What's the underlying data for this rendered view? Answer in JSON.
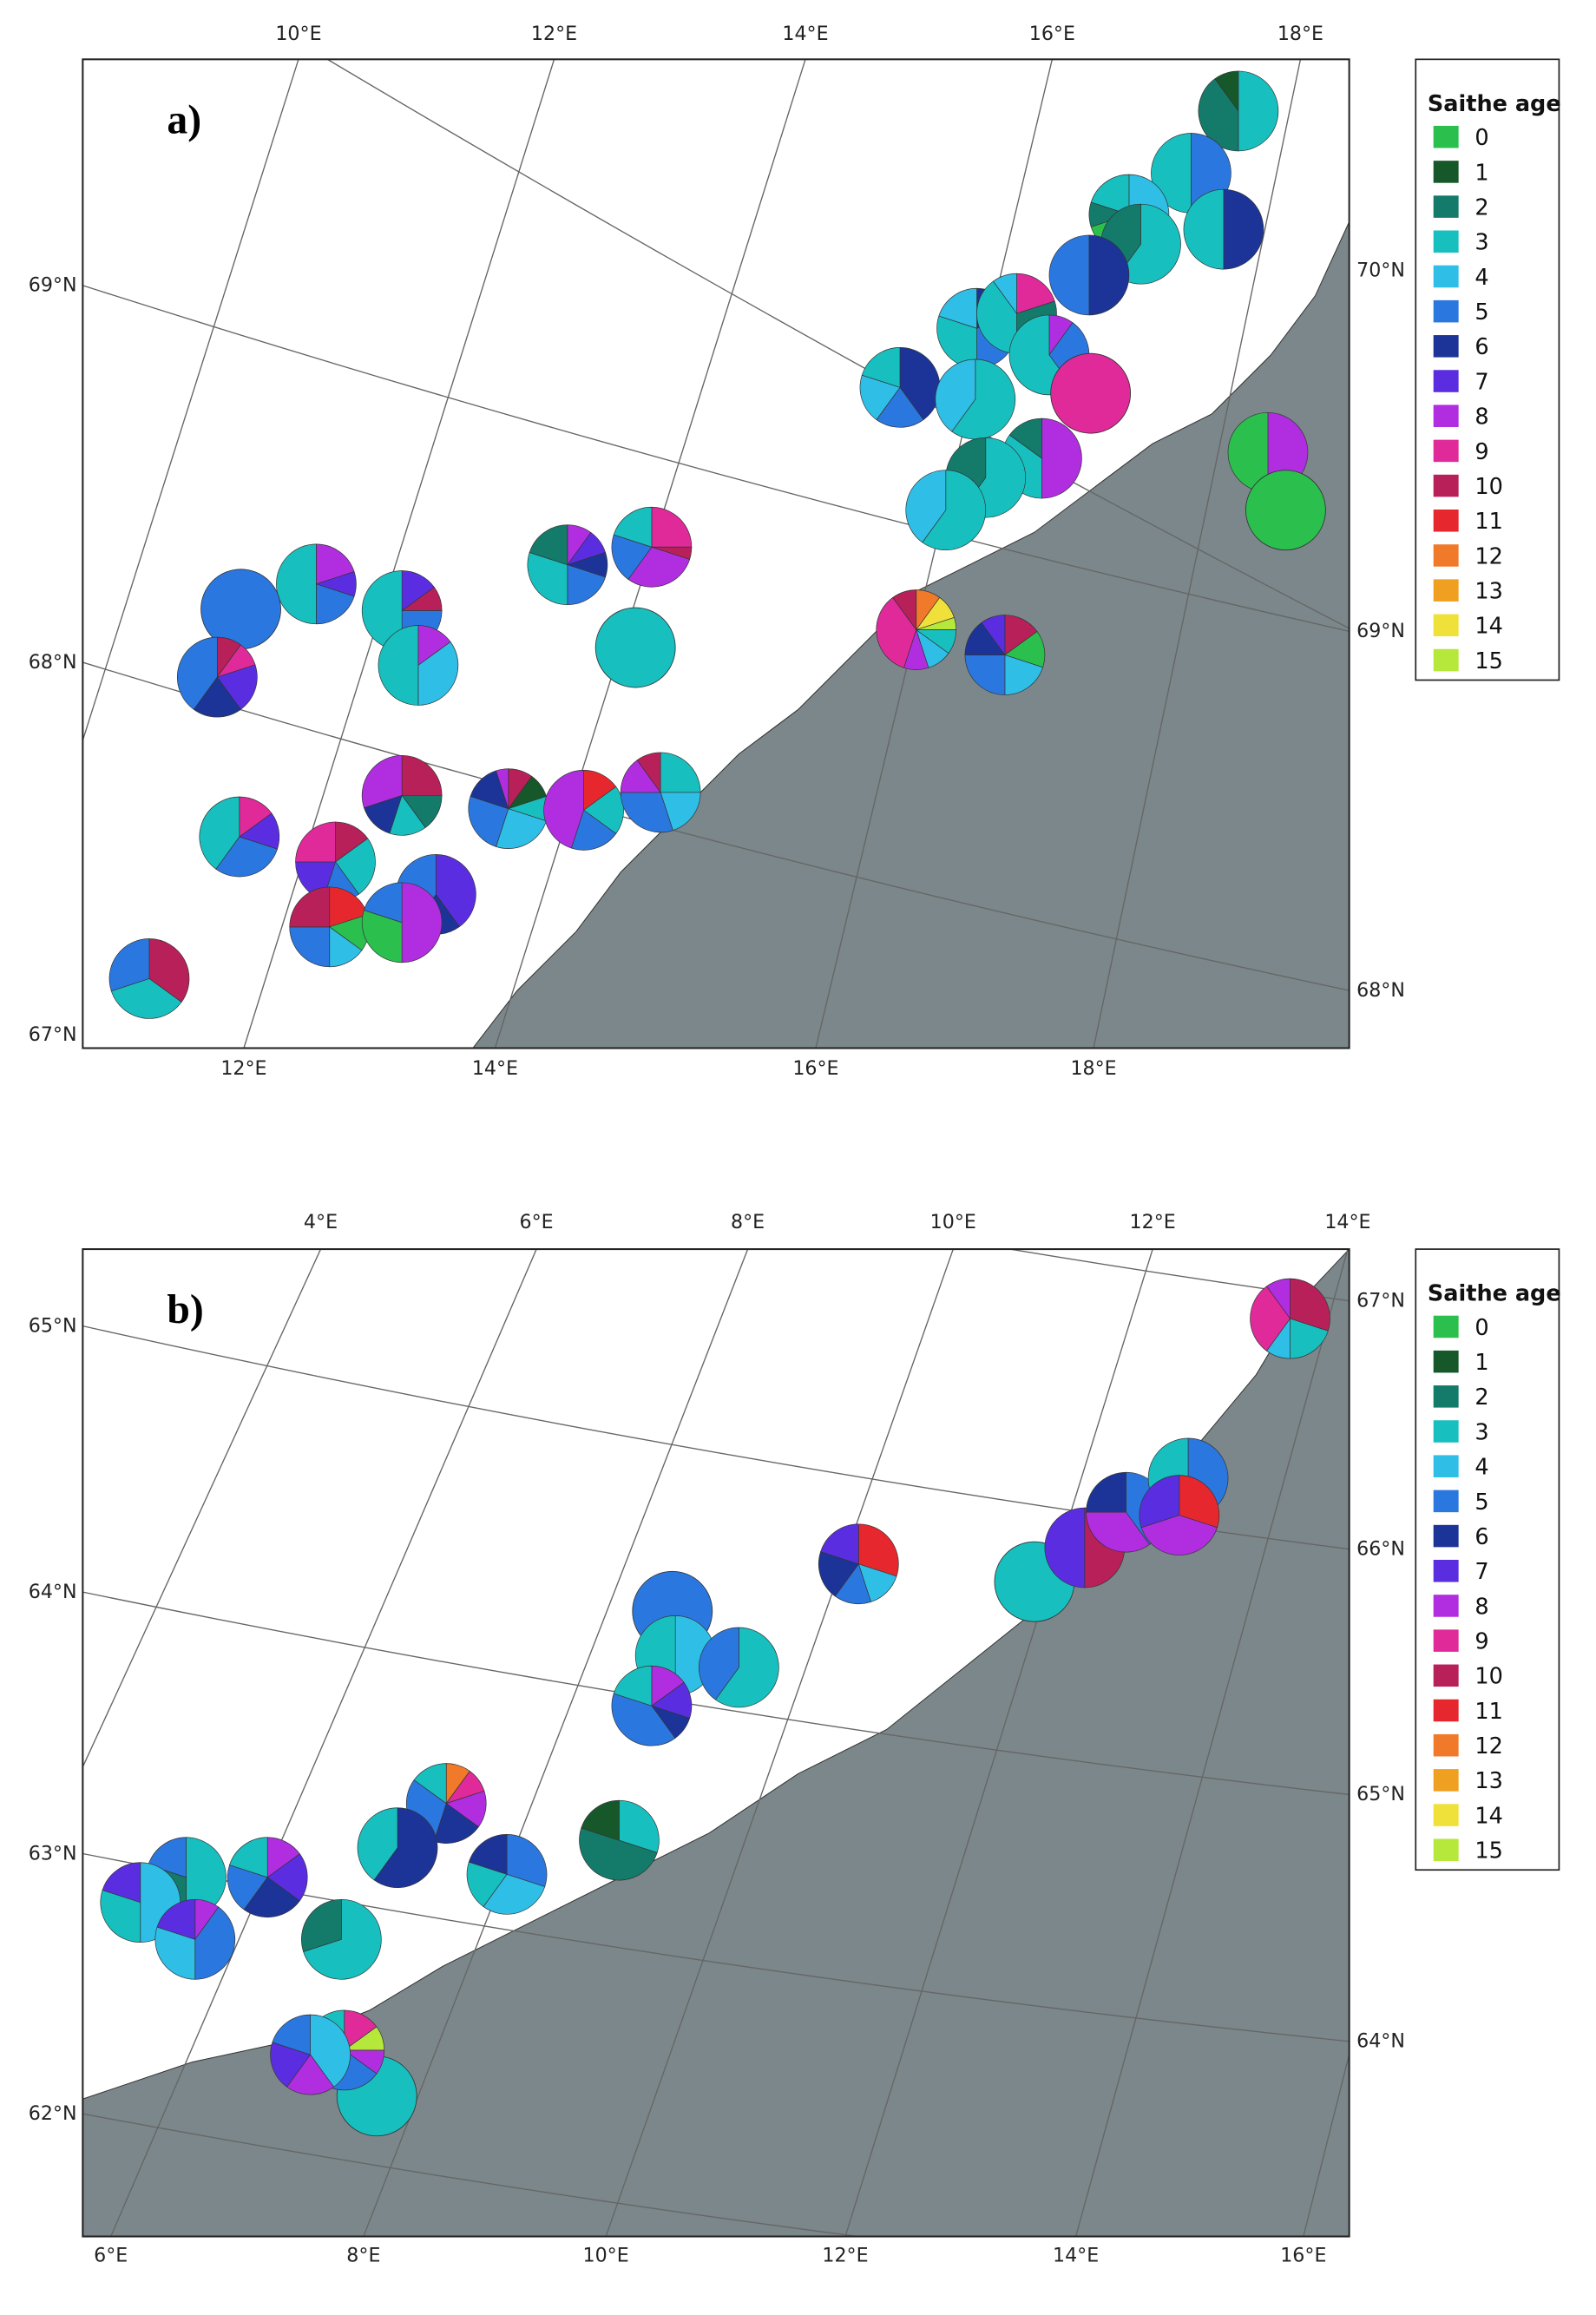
{
  "legend": {
    "title": "Saithe age",
    "ages": [
      "0",
      "1",
      "2",
      "3",
      "4",
      "5",
      "6",
      "7",
      "8",
      "9",
      "10",
      "11",
      "12",
      "13",
      "14",
      "15"
    ],
    "colors": [
      "#2bbf4e",
      "#17582a",
      "#147a6a",
      "#18bfbf",
      "#2ebee6",
      "#2b77e0",
      "#1c3497",
      "#5a2ee0",
      "#b02ee0",
      "#e02a9a",
      "#b8205a",
      "#e6282e",
      "#f07a2a",
      "#f0a020",
      "#efe03a",
      "#b5e83a"
    ]
  },
  "chart_data": [
    {
      "type": "map-pie",
      "panel_label": "a)",
      "top_ticks": [
        "10°E",
        "12°E",
        "14°E",
        "16°E",
        "18°E"
      ],
      "bottom_ticks": [
        "12°E",
        "14°E",
        "16°E",
        "18°E"
      ],
      "left_ticks": [
        "69°N",
        "68°N",
        "67°N"
      ],
      "right_ticks": [
        "70°N",
        "69°N",
        "68°N"
      ],
      "pies": [
        [
          [
            3,
            0.5
          ],
          [
            2,
            0.4
          ],
          [
            1,
            0.1
          ]
        ],
        [
          [
            5,
            0.5
          ],
          [
            3,
            0.5
          ]
        ],
        [
          [
            4,
            0.6
          ],
          [
            0,
            0.1
          ],
          [
            2,
            0.1
          ],
          [
            3,
            0.2
          ]
        ],
        [
          [
            6,
            0.5
          ],
          [
            3,
            0.5
          ]
        ],
        [
          [
            3,
            0.6
          ],
          [
            2,
            0.4
          ]
        ],
        [
          [
            6,
            0.5
          ],
          [
            5,
            0.5
          ]
        ],
        [
          [
            6,
            0.1
          ],
          [
            7,
            0.1
          ],
          [
            5,
            0.3
          ],
          [
            3,
            0.3
          ],
          [
            4,
            0.2
          ]
        ],
        [
          [
            9,
            0.2
          ],
          [
            2,
            0.3
          ],
          [
            3,
            0.4
          ],
          [
            4,
            0.1
          ]
        ],
        [
          [
            8,
            0.1
          ],
          [
            5,
            0.3
          ],
          [
            3,
            0.6
          ]
        ],
        [
          [
            9,
            1.0
          ]
        ],
        [
          [
            6,
            0.4
          ],
          [
            5,
            0.2
          ],
          [
            4,
            0.2
          ],
          [
            3,
            0.2
          ]
        ],
        [
          [
            3,
            0.6
          ],
          [
            4,
            0.4
          ]
        ],
        [
          [
            8,
            0.5
          ],
          [
            3,
            0.35
          ],
          [
            2,
            0.15
          ]
        ],
        [
          [
            8,
            0.5
          ],
          [
            0,
            0.5
          ]
        ],
        [
          [
            0,
            1.0
          ]
        ],
        [
          [
            3,
            0.6
          ],
          [
            2,
            0.4
          ]
        ],
        [
          [
            3,
            0.6
          ],
          [
            4,
            0.4
          ]
        ],
        [
          [
            8,
            0.2
          ],
          [
            7,
            0.1
          ],
          [
            5,
            0.2
          ],
          [
            3,
            0.5
          ]
        ],
        [
          [
            5,
            1.0
          ]
        ],
        [
          [
            7,
            0.15
          ],
          [
            10,
            0.1
          ],
          [
            5,
            0.25
          ],
          [
            3,
            0.5
          ]
        ],
        [
          [
            8,
            0.15
          ],
          [
            4,
            0.35
          ],
          [
            3,
            0.5
          ]
        ],
        [
          [
            8,
            0.1
          ],
          [
            7,
            0.1
          ],
          [
            6,
            0.1
          ],
          [
            5,
            0.2
          ],
          [
            3,
            0.3
          ],
          [
            2,
            0.2
          ]
        ],
        [
          [
            9,
            0.25
          ],
          [
            10,
            0.05
          ],
          [
            8,
            0.3
          ],
          [
            5,
            0.2
          ],
          [
            3,
            0.2
          ]
        ],
        [
          [
            3,
            1.0
          ]
        ],
        [
          [
            10,
            0.1
          ],
          [
            9,
            0.1
          ],
          [
            7,
            0.2
          ],
          [
            6,
            0.2
          ],
          [
            5,
            0.4
          ]
        ],
        [
          [
            12,
            0.1
          ],
          [
            14,
            0.1
          ],
          [
            15,
            0.05
          ],
          [
            3,
            0.1
          ],
          [
            4,
            0.1
          ],
          [
            8,
            0.1
          ],
          [
            9,
            0.35
          ],
          [
            10,
            0.1
          ]
        ],
        [
          [
            10,
            0.15
          ],
          [
            0,
            0.15
          ],
          [
            4,
            0.2
          ],
          [
            5,
            0.25
          ],
          [
            6,
            0.15
          ],
          [
            7,
            0.1
          ]
        ],
        [
          [
            10,
            0.25
          ],
          [
            2,
            0.15
          ],
          [
            3,
            0.15
          ],
          [
            6,
            0.15
          ],
          [
            8,
            0.3
          ]
        ],
        [
          [
            10,
            0.1
          ],
          [
            1,
            0.1
          ],
          [
            3,
            0.1
          ],
          [
            4,
            0.25
          ],
          [
            5,
            0.25
          ],
          [
            6,
            0.15
          ],
          [
            8,
            0.05
          ]
        ],
        [
          [
            11,
            0.15
          ],
          [
            3,
            0.2
          ],
          [
            5,
            0.2
          ],
          [
            8,
            0.45
          ]
        ],
        [
          [
            3,
            0.25
          ],
          [
            4,
            0.2
          ],
          [
            5,
            0.3
          ],
          [
            8,
            0.15
          ],
          [
            10,
            0.1
          ]
        ],
        [
          [
            9,
            0.15
          ],
          [
            7,
            0.15
          ],
          [
            5,
            0.3
          ],
          [
            3,
            0.4
          ]
        ],
        [
          [
            10,
            0.15
          ],
          [
            3,
            0.25
          ],
          [
            5,
            0.15
          ],
          [
            7,
            0.2
          ],
          [
            9,
            0.25
          ]
        ],
        [
          [
            7,
            0.4
          ],
          [
            6,
            0.2
          ],
          [
            5,
            0.4
          ]
        ],
        [
          [
            11,
            0.2
          ],
          [
            0,
            0.15
          ],
          [
            4,
            0.15
          ],
          [
            5,
            0.25
          ],
          [
            10,
            0.25
          ]
        ],
        [
          [
            8,
            0.5
          ],
          [
            0,
            0.3
          ],
          [
            5,
            0.2
          ]
        ],
        [
          [
            10,
            0.35
          ],
          [
            3,
            0.35
          ],
          [
            5,
            0.3
          ]
        ]
      ]
    },
    {
      "type": "map-pie",
      "panel_label": "b)",
      "top_ticks": [
        "4°E",
        "6°E",
        "8°E",
        "10°E",
        "12°E",
        "14°E"
      ],
      "bottom_ticks": [
        "6°E",
        "8°E",
        "10°E",
        "12°E",
        "14°E",
        "16°E"
      ],
      "left_ticks": [
        "65°N",
        "64°N",
        "63°N",
        "62°N"
      ],
      "right_ticks": [
        "67°N",
        "66°N",
        "65°N",
        "64°N"
      ],
      "pies": [
        [
          [
            10,
            0.3
          ],
          [
            3,
            0.2
          ],
          [
            4,
            0.1
          ],
          [
            9,
            0.3
          ],
          [
            8,
            0.1
          ]
        ],
        [
          [
            11,
            0.3
          ],
          [
            4,
            0.15
          ],
          [
            5,
            0.15
          ],
          [
            6,
            0.2
          ],
          [
            7,
            0.2
          ]
        ],
        [
          [
            5,
            1.0
          ]
        ],
        [
          [
            4,
            0.5
          ],
          [
            3,
            0.5
          ]
        ],
        [
          [
            3,
            0.6
          ],
          [
            5,
            0.4
          ]
        ],
        [
          [
            8,
            0.15
          ],
          [
            7,
            0.15
          ],
          [
            6,
            0.1
          ],
          [
            5,
            0.4
          ],
          [
            3,
            0.2
          ]
        ],
        [
          [
            3,
            1.0
          ]
        ],
        [
          [
            10,
            0.5
          ],
          [
            7,
            0.5
          ]
        ],
        [
          [
            5,
            0.4
          ],
          [
            8,
            0.35
          ],
          [
            6,
            0.25
          ]
        ],
        [
          [
            5,
            0.4
          ],
          [
            4,
            0.3
          ],
          [
            3,
            0.3
          ]
        ],
        [
          [
            11,
            0.3
          ],
          [
            8,
            0.4
          ],
          [
            7,
            0.3
          ]
        ],
        [
          [
            12,
            0.1
          ],
          [
            9,
            0.1
          ],
          [
            8,
            0.15
          ],
          [
            6,
            0.2
          ],
          [
            5,
            0.3
          ],
          [
            3,
            0.15
          ]
        ],
        [
          [
            6,
            0.6
          ],
          [
            3,
            0.4
          ]
        ],
        [
          [
            3,
            0.3
          ],
          [
            2,
            0.5
          ],
          [
            1,
            0.2
          ]
        ],
        [
          [
            5,
            0.3
          ],
          [
            4,
            0.3
          ],
          [
            3,
            0.2
          ],
          [
            6,
            0.2
          ]
        ],
        [
          [
            8,
            0.15
          ],
          [
            7,
            0.2
          ],
          [
            6,
            0.25
          ],
          [
            5,
            0.2
          ],
          [
            3,
            0.2
          ]
        ],
        [
          [
            3,
            0.5
          ],
          [
            2,
            0.3
          ],
          [
            5,
            0.2
          ]
        ],
        [
          [
            4,
            0.5
          ],
          [
            3,
            0.3
          ],
          [
            7,
            0.2
          ]
        ],
        [
          [
            8,
            0.1
          ],
          [
            5,
            0.4
          ],
          [
            4,
            0.3
          ],
          [
            7,
            0.2
          ]
        ],
        [
          [
            3,
            0.7
          ],
          [
            2,
            0.3
          ]
        ],
        [
          [
            3,
            1.0
          ]
        ],
        [
          [
            9,
            0.15
          ],
          [
            15,
            0.1
          ],
          [
            8,
            0.1
          ],
          [
            5,
            0.25
          ],
          [
            6,
            0.2
          ],
          [
            4,
            0.1
          ],
          [
            3,
            0.1
          ]
        ],
        [
          [
            4,
            0.4
          ],
          [
            8,
            0.2
          ],
          [
            7,
            0.2
          ],
          [
            5,
            0.2
          ]
        ]
      ]
    }
  ]
}
